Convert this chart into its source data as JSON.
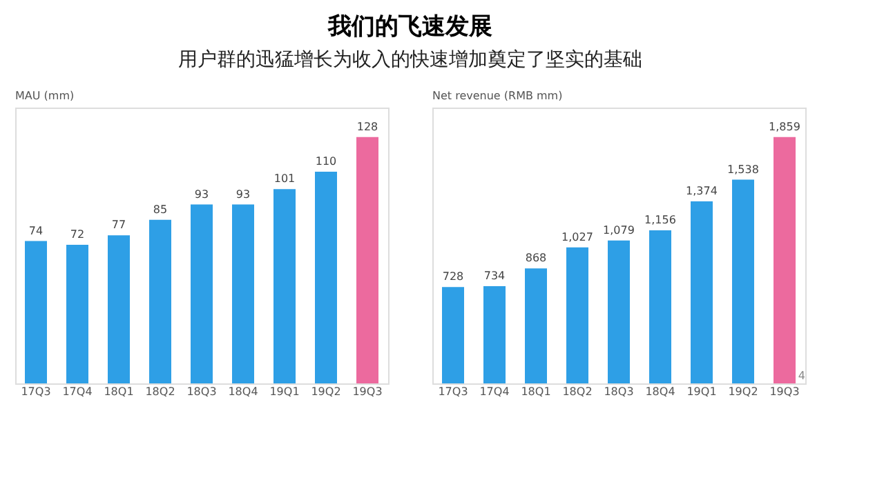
{
  "chart_data": [
    {
      "type": "bar",
      "title": "我们的飞速发展",
      "subtitle": "用户群的迅猛增长为收入的快速增加奠定了坚实的基础",
      "ylabel": "MAU (mm)",
      "categories": [
        "17Q3",
        "17Q4",
        "18Q1",
        "18Q2",
        "18Q3",
        "18Q4",
        "19Q1",
        "19Q2",
        "19Q3"
      ],
      "values": [
        74,
        72,
        77,
        85,
        93,
        93,
        101,
        110,
        128
      ],
      "colors": [
        "#2e9fe6",
        "#2e9fe6",
        "#2e9fe6",
        "#2e9fe6",
        "#2e9fe6",
        "#2e9fe6",
        "#2e9fe6",
        "#2e9fe6",
        "#ec6a9e"
      ],
      "data_labels": true
    },
    {
      "type": "bar",
      "ylabel": "Net revenue (RMB mm)",
      "categories": [
        "17Q3",
        "17Q4",
        "18Q1",
        "18Q2",
        "18Q3",
        "18Q4",
        "19Q1",
        "19Q2",
        "19Q3"
      ],
      "values": [
        728,
        734,
        868,
        1027,
        1079,
        1156,
        1374,
        1538,
        1859
      ],
      "colors": [
        "#2e9fe6",
        "#2e9fe6",
        "#2e9fe6",
        "#2e9fe6",
        "#2e9fe6",
        "#2e9fe6",
        "#2e9fe6",
        "#2e9fe6",
        "#ec6a9e"
      ],
      "value_labels": [
        "728",
        "734",
        "868",
        "1,027",
        "1,079",
        "1,156",
        "1,374",
        "1,538",
        "1,859"
      ],
      "annotations": [
        "4"
      ]
    }
  ]
}
